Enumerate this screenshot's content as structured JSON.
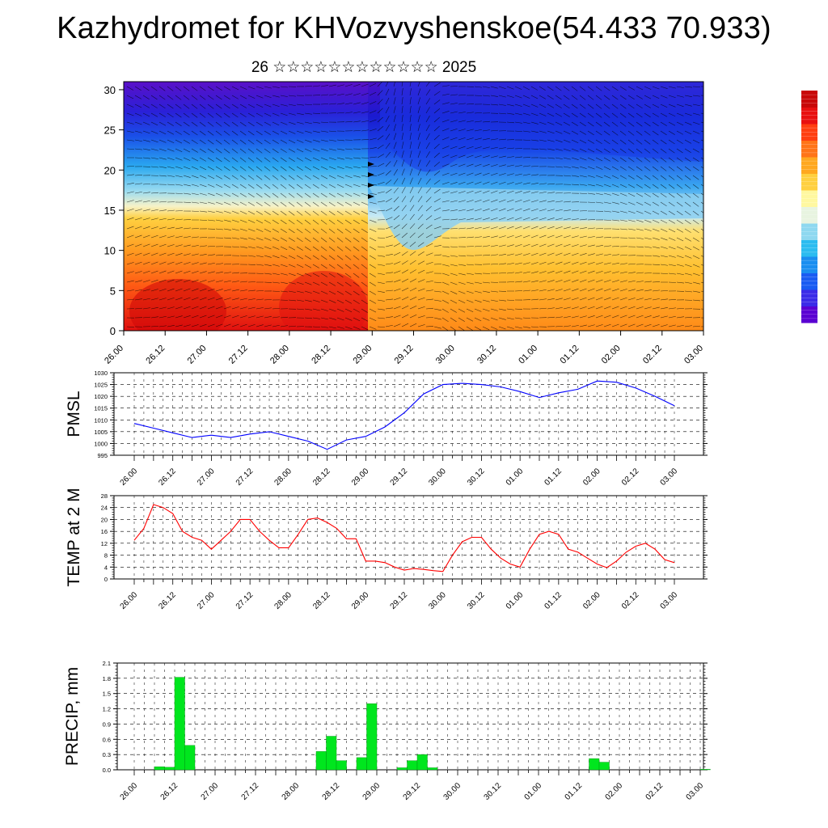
{
  "title": "Kazhydromet for KHVozvyshenskoe(54.433 70.933)",
  "subtitle": "26 ☆☆☆☆☆☆☆☆☆☆☆☆ 2025",
  "time_labels": [
    "26.00",
    "26.12",
    "27.00",
    "27.12",
    "28.00",
    "28.12",
    "29.00",
    "29.12",
    "30.00",
    "30.12",
    "01.00",
    "01.12",
    "02.00",
    "02.12",
    "03.00"
  ],
  "colors": {
    "pmsl": "#0000ff",
    "temp": "#ff0000",
    "precip": "#00e61e",
    "colorbar": [
      "#5a00d2",
      "#3b2be8",
      "#1a5cf2",
      "#1a8ef0",
      "#2bbcf0",
      "#8ed8f0",
      "#e8f4e0",
      "#fff8a0",
      "#ffd040",
      "#ffa820",
      "#ff7418",
      "#ff3e10",
      "#e81010",
      "#c80808"
    ]
  },
  "chart_data": [
    {
      "type": "heatmap",
      "title": "",
      "x_labels": [
        "26.00",
        "26.12",
        "27.00",
        "27.12",
        "28.00",
        "28.12",
        "29.00",
        "29.12",
        "30.00",
        "30.12",
        "01.00",
        "01.12",
        "02.00",
        "02.12",
        "03.00"
      ],
      "y_ticks": [
        0,
        5,
        10,
        15,
        20,
        25,
        30
      ],
      "ylim": [
        0,
        31
      ],
      "colorbar": true
    },
    {
      "type": "line",
      "ylabel": "PMSL",
      "ylim": [
        995,
        1030
      ],
      "y_ticks": [
        995,
        1000,
        1005,
        1010,
        1015,
        1020,
        1025,
        1030
      ],
      "x": [
        0,
        0.5,
        1,
        1.5,
        2,
        2.5,
        3,
        3.5,
        4,
        4.5,
        5,
        5.5,
        6,
        6.5,
        7,
        7.5,
        8,
        8.5,
        9,
        9.5,
        10,
        10.5,
        11,
        11.5,
        12,
        12.5,
        13,
        13.5,
        14
      ],
      "series": [
        {
          "values": [
            1008.5,
            1006.5,
            1004.5,
            1002.5,
            1003.5,
            1002.5,
            1004,
            1005,
            1003,
            1001,
            997.5,
            1001.5,
            1003,
            1007,
            1013,
            1021,
            1025,
            1025.5,
            1025,
            1024,
            1022,
            1019.5,
            1021.5,
            1023,
            1026.5,
            1026,
            1023.5,
            1020,
            1016
          ]
        }
      ],
      "grid": true
    },
    {
      "type": "line",
      "ylabel": "TEMP at 2 M",
      "ylim": [
        0,
        28
      ],
      "y_ticks": [
        0,
        4,
        8,
        12,
        16,
        20,
        24,
        28
      ],
      "x": [
        0,
        0.25,
        0.5,
        0.75,
        1,
        1.25,
        1.5,
        1.75,
        2,
        2.25,
        2.5,
        2.75,
        3,
        3.25,
        3.5,
        3.75,
        4,
        4.25,
        4.5,
        4.75,
        5,
        5.25,
        5.5,
        5.75,
        6,
        6.25,
        6.5,
        6.75,
        7,
        7.25,
        7.5,
        7.75,
        8,
        8.25,
        8.5,
        8.75,
        9,
        9.25,
        9.5,
        9.75,
        10,
        10.25,
        10.5,
        10.75,
        11,
        11.25,
        11.5,
        11.75,
        12,
        12.25,
        12.5,
        12.75,
        13,
        13.25,
        13.5,
        13.75,
        14
      ],
      "series": [
        {
          "values": [
            13,
            17,
            25,
            24,
            22,
            16,
            14,
            13,
            10,
            13,
            16,
            20,
            20,
            16,
            13,
            10.5,
            10.5,
            15,
            20,
            20.5,
            19,
            17,
            13.5,
            13.5,
            6,
            6,
            5.5,
            4,
            3,
            3.5,
            3.2,
            2.8,
            2.5,
            8,
            12.5,
            14,
            14,
            10,
            7,
            5,
            4,
            10,
            15,
            16,
            15,
            10,
            9,
            7,
            5,
            3.8,
            6,
            9,
            11,
            12,
            10,
            6.5,
            5.5
          ]
        }
      ],
      "grid": true
    },
    {
      "type": "bar",
      "ylabel": "PRECIP, mm",
      "ylim": [
        0,
        2.1
      ],
      "y_ticks": [
        "0.0",
        "0.3",
        "0.6",
        "0.9",
        "1.2",
        "1.5",
        "1.8",
        "2.1"
      ],
      "x": [
        0.5,
        0.75,
        1,
        1.25,
        4.5,
        4.75,
        5,
        5.5,
        5.75,
        6.5,
        6.75,
        7,
        7.25,
        11.25,
        11.5,
        14
      ],
      "values": [
        0.06,
        0.05,
        1.82,
        0.48,
        0.36,
        0.66,
        0.18,
        0.24,
        1.3,
        0.04,
        0.18,
        0.3,
        0.04,
        0.22,
        0.15,
        0.01
      ],
      "grid": true
    }
  ]
}
